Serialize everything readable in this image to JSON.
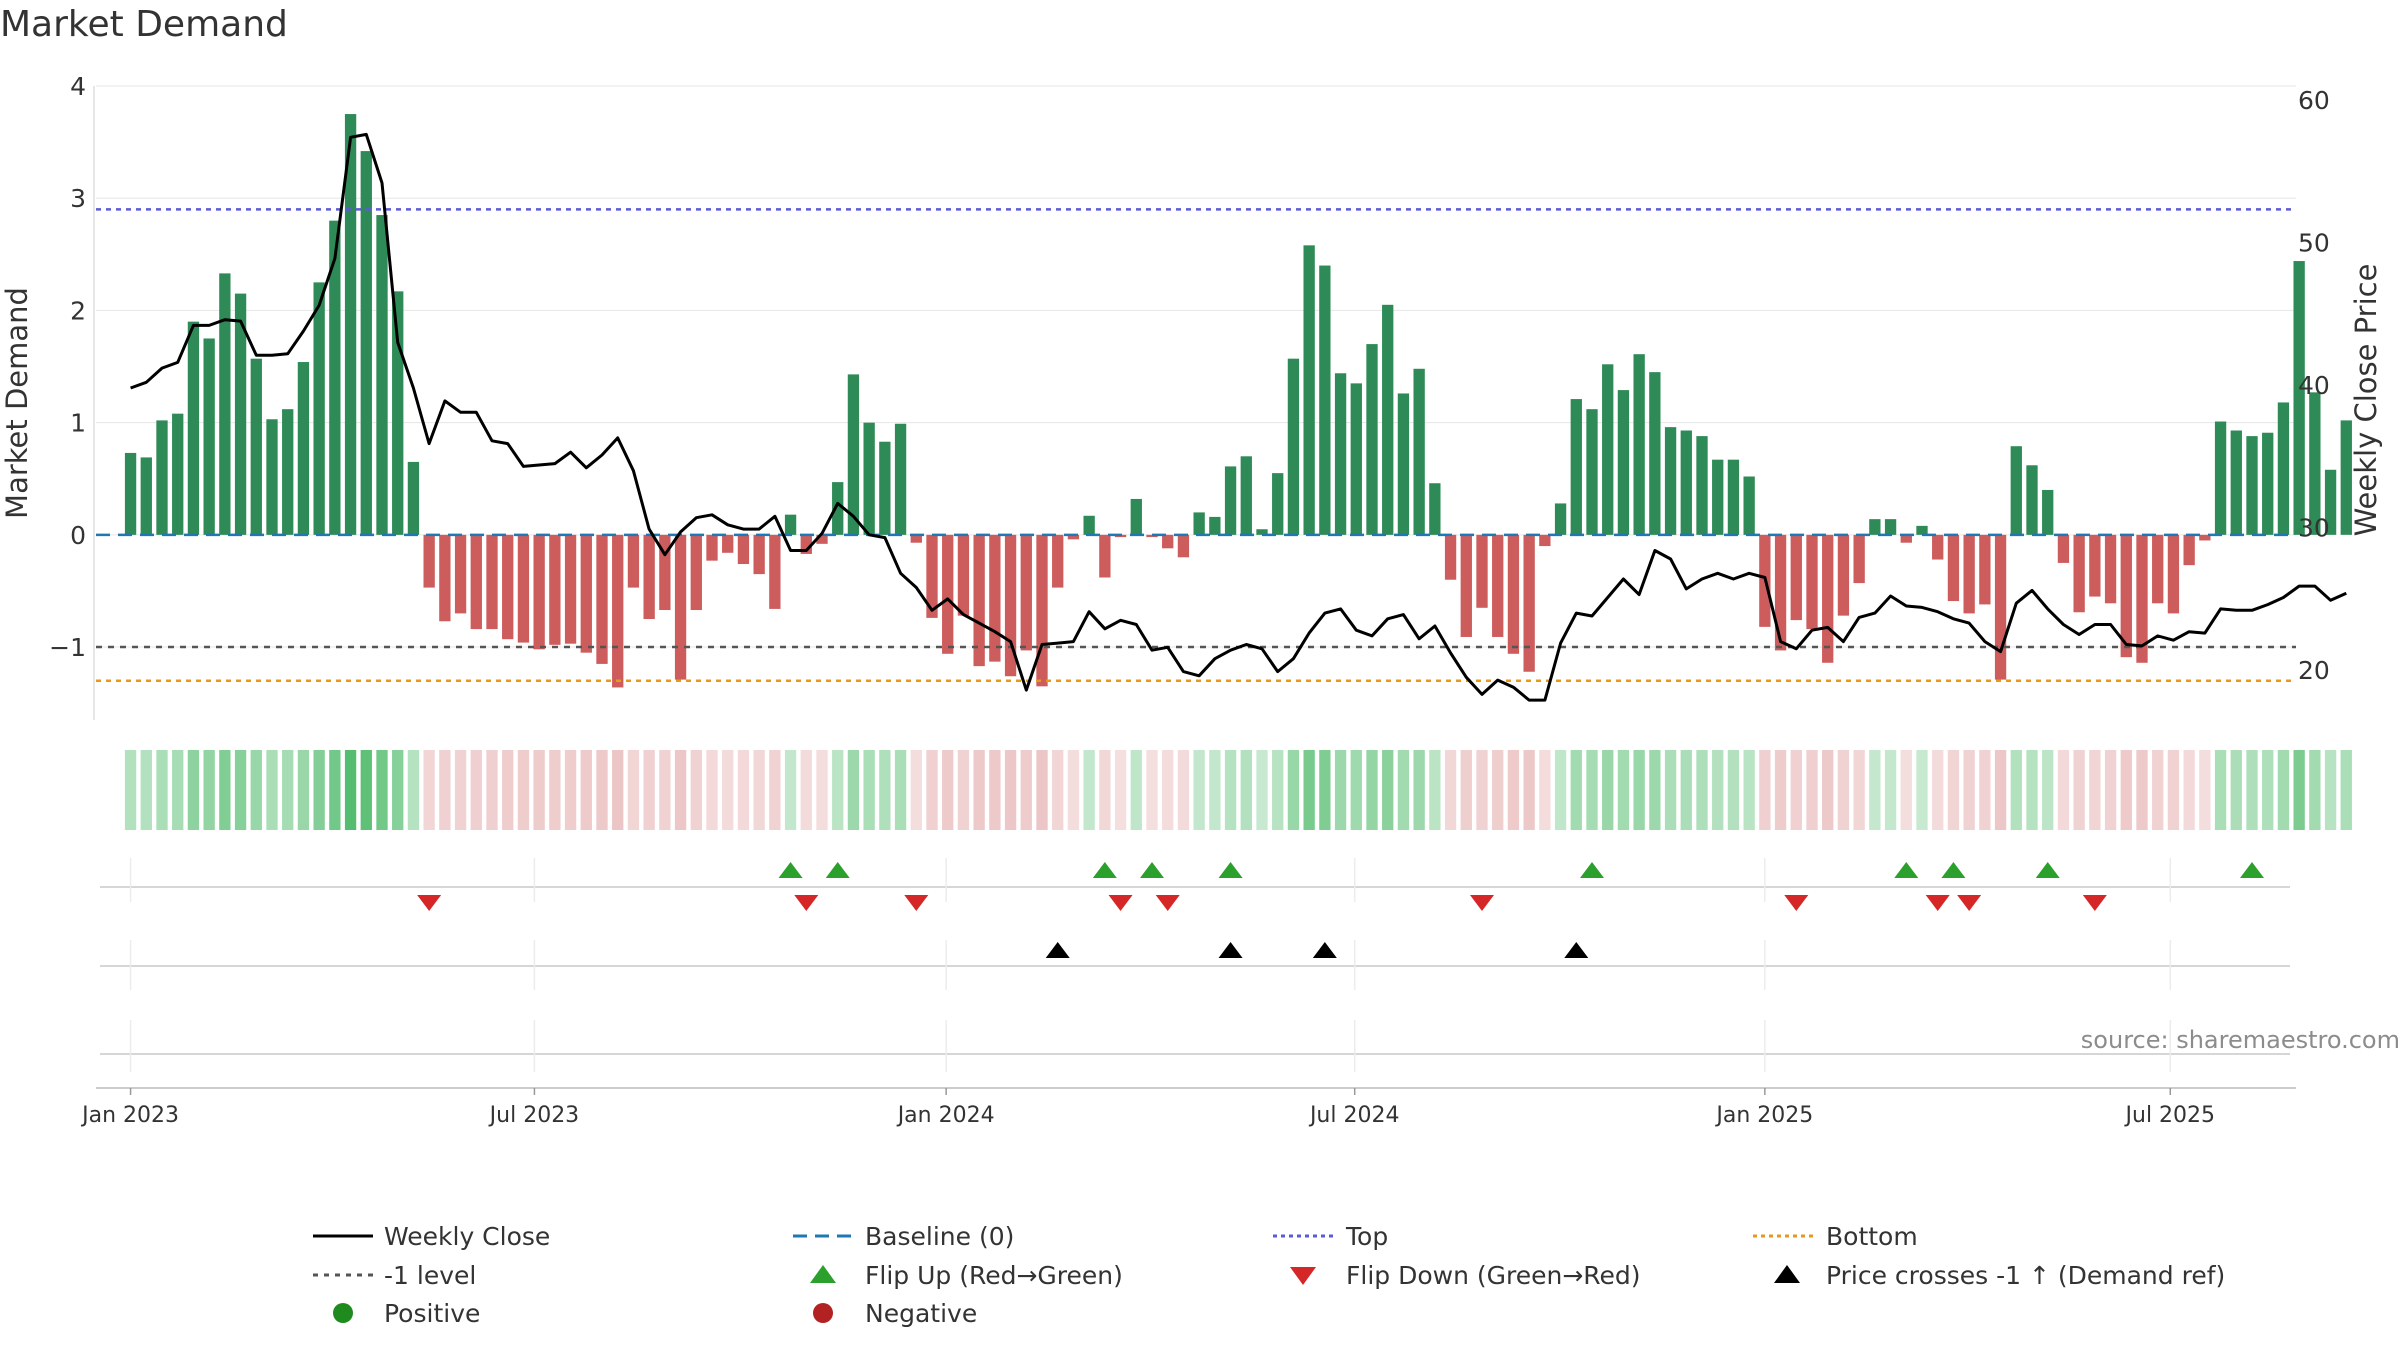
{
  "title": "Market Demand",
  "source": "source: sharemaestro.com",
  "colors": {
    "positive": "#2e8b57",
    "negative": "#cd5c5c",
    "close": "#000000",
    "baseline": "#1f77b4",
    "top": "#5b5bd6",
    "minus1": "#555555",
    "bottom": "#e69a1a",
    "flip_up": "#2ca02c",
    "flip_down": "#d62728",
    "cross": "#000000",
    "legend_positive": "#1f8b1f",
    "legend_negative": "#b22222",
    "grid": "#e6e6e6",
    "axis_text": "#333333"
  },
  "chart_data": {
    "type": "bar",
    "title": "Market Demand",
    "ylabel": "Market Demand",
    "y2label": "Weekly Close Price",
    "ylim": [
      -1.65,
      4.0
    ],
    "y2lim": [
      16.5,
      61.0
    ],
    "yticks": [
      4,
      3,
      2,
      1,
      0,
      -1
    ],
    "ytick_labels": [
      "4",
      "3",
      "2",
      "1",
      "0",
      "−1"
    ],
    "y2ticks": [
      60,
      50,
      40,
      30,
      20
    ],
    "y2tick_labels": [
      "60",
      "50",
      "40",
      "30",
      "20"
    ],
    "x_domain_index": [
      -2.2,
      137.8
    ],
    "xticks": [
      {
        "index": 0,
        "label": "Jan 2023"
      },
      {
        "index": 25.7,
        "label": "Jul 2023"
      },
      {
        "index": 51.9,
        "label": "Jan 2024"
      },
      {
        "index": 77.9,
        "label": "Jul 2024"
      },
      {
        "index": 104.0,
        "label": "Jan 2025"
      },
      {
        "index": 129.8,
        "label": "Jul 2025"
      }
    ],
    "levels": {
      "top": 2.9,
      "minus1": -1.0,
      "bottom": -1.3,
      "baseline": 0
    },
    "series": [
      {
        "name": "Market Demand",
        "kind": "bar",
        "values": [
          0.73,
          0.69,
          1.02,
          1.08,
          1.9,
          1.75,
          2.33,
          2.15,
          1.57,
          1.03,
          1.12,
          1.54,
          2.25,
          2.8,
          3.75,
          3.42,
          2.85,
          2.17,
          0.65,
          -0.47,
          -0.77,
          -0.7,
          -0.84,
          -0.84,
          -0.93,
          -0.96,
          -1.02,
          -0.98,
          -0.97,
          -1.05,
          -1.15,
          -1.36,
          -0.47,
          -0.75,
          -0.67,
          -1.29,
          -0.67,
          -0.23,
          -0.16,
          -0.26,
          -0.35,
          -0.66,
          0.18,
          -0.17,
          -0.08,
          0.47,
          1.43,
          1.0,
          0.83,
          0.99,
          -0.07,
          -0.74,
          -1.06,
          -0.72,
          -1.17,
          -1.13,
          -1.26,
          -1.03,
          -1.35,
          -0.47,
          -0.04,
          0.17,
          -0.38,
          -0.02,
          0.32,
          -0.02,
          -0.12,
          -0.2,
          0.2,
          0.16,
          0.61,
          0.7,
          0.05,
          0.55,
          1.57,
          2.58,
          2.4,
          1.44,
          1.35,
          1.7,
          2.05,
          1.26,
          1.48,
          0.46,
          -0.4,
          -0.91,
          -0.65,
          -0.91,
          -1.06,
          -1.22,
          -0.1,
          0.28,
          1.21,
          1.12,
          1.52,
          1.29,
          1.61,
          1.45,
          0.96,
          0.93,
          0.88,
          0.67,
          0.67,
          0.52,
          -0.82,
          -1.03,
          -0.76,
          -0.84,
          -1.14,
          -0.72,
          -0.43,
          0.14,
          0.14,
          -0.07,
          0.08,
          -0.22,
          -0.59,
          -0.7,
          -0.62,
          -1.29,
          0.79,
          0.62,
          0.4,
          -0.25,
          -0.69,
          -0.55,
          -0.61,
          -1.09,
          -1.14,
          -0.61,
          -0.7,
          -0.27,
          -0.05,
          1.01,
          0.93,
          0.88,
          0.91,
          1.18,
          2.44,
          1.27,
          0.58,
          1.02
        ]
      },
      {
        "name": "Weekly Close",
        "kind": "line",
        "values": [
          39.8,
          40.2,
          41.2,
          41.6,
          44.2,
          44.2,
          44.6,
          44.5,
          42.1,
          42.1,
          42.2,
          43.8,
          45.6,
          48.9,
          57.4,
          57.6,
          54.2,
          43.0,
          39.8,
          35.9,
          38.9,
          38.1,
          38.1,
          36.1,
          35.9,
          34.3,
          34.4,
          34.5,
          35.3,
          34.2,
          35.1,
          36.3,
          34.0,
          29.9,
          28.1,
          29.7,
          30.7,
          30.9,
          30.2,
          29.9,
          29.9,
          30.8,
          28.4,
          28.4,
          29.6,
          31.7,
          30.8,
          29.5,
          29.3,
          26.8,
          25.8,
          24.2,
          25.0,
          23.9,
          23.3,
          22.7,
          22.0,
          18.6,
          21.8,
          21.9,
          22.0,
          24.1,
          22.9,
          23.5,
          23.2,
          21.4,
          21.6,
          19.9,
          19.6,
          20.8,
          21.4,
          21.8,
          21.5,
          19.9,
          20.8,
          22.6,
          24.0,
          24.3,
          22.8,
          22.4,
          23.6,
          23.9,
          22.2,
          23.1,
          21.2,
          19.5,
          18.3,
          19.3,
          18.8,
          17.9,
          17.9,
          21.9,
          24.0,
          23.8,
          25.1,
          26.4,
          25.3,
          28.4,
          27.8,
          25.7,
          26.4,
          26.8,
          26.4,
          26.8,
          26.5,
          22.0,
          21.5,
          22.8,
          23.0,
          22.0,
          23.7,
          24.0,
          25.2,
          24.5,
          24.4,
          24.1,
          23.6,
          23.3,
          22.0,
          21.3,
          24.7,
          25.6,
          24.3,
          23.2,
          22.5,
          23.2,
          23.2,
          21.8,
          21.7,
          22.4,
          22.1,
          22.7,
          22.6,
          24.3,
          24.2,
          24.2,
          24.6,
          25.1,
          25.9,
          25.9,
          24.9,
          25.4
        ]
      }
    ],
    "flip_up_indices": [
      42,
      45,
      62,
      65,
      70,
      93,
      113,
      116,
      122,
      135
    ],
    "flip_down_indices": [
      19,
      43,
      50,
      63,
      66,
      86,
      106,
      115,
      117,
      125
    ],
    "price_cross_indices": [
      59,
      70,
      76,
      92
    ]
  },
  "legend": {
    "weekly_close": "Weekly Close",
    "baseline": "Baseline (0)",
    "top": "Top",
    "bottom": "Bottom",
    "minus1": "-1 level",
    "flip_up": "Flip Up (Red→Green)",
    "flip_down": "Flip Down (Green→Red)",
    "price_cross": "Price crosses -1 ↑ (Demand ref)",
    "positive": "Positive",
    "negative": "Negative"
  }
}
